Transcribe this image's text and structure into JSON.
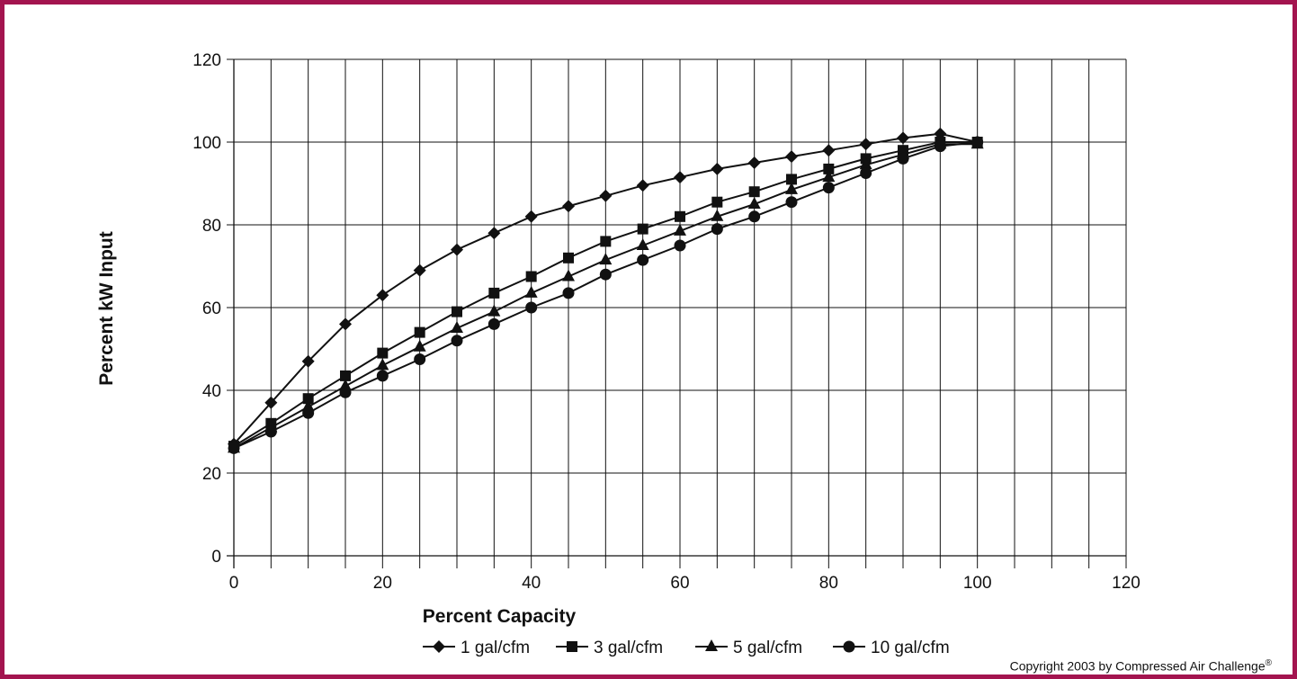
{
  "chart_data": {
    "type": "line",
    "xlabel": "Percent Capacity",
    "ylabel": "Percent kW Input",
    "xlim": [
      0,
      120
    ],
    "ylim": [
      0,
      120
    ],
    "x_ticks": [
      "0",
      "20",
      "40",
      "60",
      "80",
      "100",
      "120"
    ],
    "y_ticks": [
      "0",
      "20",
      "40",
      "60",
      "80",
      "100",
      "120"
    ],
    "x_minor_grid_step": 5,
    "y_grid_step": 20,
    "grid": true,
    "legend_position": "bottom",
    "colors": {
      "frame": "#a3144f",
      "line": "#111111"
    },
    "x": [
      0,
      5,
      10,
      15,
      20,
      25,
      30,
      35,
      40,
      45,
      50,
      55,
      60,
      65,
      70,
      75,
      80,
      85,
      90,
      95,
      100
    ],
    "series": [
      {
        "name": "1 gal/cfm",
        "marker": "diamond",
        "values": [
          27,
          37,
          47,
          56,
          63,
          69,
          74,
          78,
          82,
          84.5,
          87,
          89.5,
          91.5,
          93.5,
          95,
          96.5,
          98,
          99.5,
          101,
          102,
          100
        ]
      },
      {
        "name": "3 gal/cfm",
        "marker": "square",
        "values": [
          26.5,
          32,
          38,
          43.5,
          49,
          54,
          59,
          63.5,
          67.5,
          72,
          76,
          79,
          82,
          85.5,
          88,
          91,
          93.5,
          96,
          98,
          100,
          100
        ]
      },
      {
        "name": "5 gal/cfm",
        "marker": "triangle",
        "values": [
          26,
          31,
          36,
          41,
          46,
          50.5,
          55,
          59,
          63.5,
          67.5,
          71.5,
          75,
          78.5,
          82,
          85,
          88.5,
          91.5,
          94.5,
          97,
          99.5,
          99.5
        ]
      },
      {
        "name": "10 gal/cfm",
        "marker": "circle",
        "values": [
          26,
          30,
          34.5,
          39.5,
          43.5,
          47.5,
          52,
          56,
          60,
          63.5,
          68,
          71.5,
          75,
          79,
          82,
          85.5,
          89,
          92.5,
          96,
          99,
          100
        ]
      }
    ]
  },
  "copyright": {
    "text": "Copyright 2003 by Compressed Air Challenge",
    "mark": "®"
  }
}
